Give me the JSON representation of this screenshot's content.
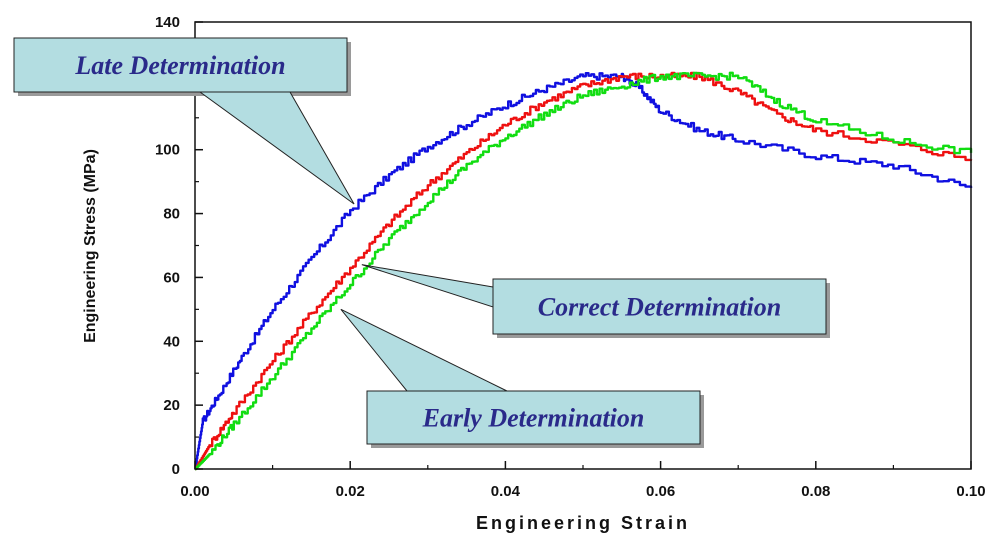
{
  "chart_data": {
    "type": "line",
    "xlabel": "Engineering Strain",
    "ylabel": "Engineering Stress (MPa)",
    "xlim": [
      0,
      0.1
    ],
    "ylim": [
      0,
      140
    ],
    "xticks": [
      "0.00",
      "0.02",
      "0.04",
      "0.06",
      "0.08",
      "0.10"
    ],
    "yticks": [
      "0",
      "20",
      "40",
      "60",
      "80",
      "100",
      "140"
    ],
    "grid": false,
    "series": [
      {
        "color": "#1010e0",
        "x": [
          0,
          0.001,
          0.003,
          0.006,
          0.01,
          0.015,
          0.02,
          0.025,
          0.03,
          0.035,
          0.04,
          0.045,
          0.05,
          0.055,
          0.057,
          0.06,
          0.065,
          0.07,
          0.08,
          0.09,
          0.1
        ],
        "y": [
          0,
          15,
          23,
          35,
          50,
          66,
          81,
          92,
          101,
          108,
          114,
          119,
          123,
          123,
          120,
          112,
          106,
          103,
          98,
          95,
          88
        ]
      },
      {
        "color": "#ee1010",
        "x": [
          0,
          0.002,
          0.005,
          0.01,
          0.015,
          0.02,
          0.025,
          0.03,
          0.035,
          0.04,
          0.045,
          0.05,
          0.055,
          0.06,
          0.065,
          0.07,
          0.075,
          0.08,
          0.09,
          0.1
        ],
        "y": [
          0,
          8,
          18,
          34,
          49,
          63,
          77,
          89,
          99,
          108,
          115,
          120,
          123,
          123,
          123,
          118,
          111,
          106,
          102,
          97
        ]
      },
      {
        "color": "#11dd11",
        "x": [
          0,
          0.002,
          0.005,
          0.01,
          0.015,
          0.02,
          0.025,
          0.03,
          0.035,
          0.04,
          0.045,
          0.05,
          0.055,
          0.06,
          0.065,
          0.07,
          0.075,
          0.08,
          0.09,
          0.1
        ],
        "y": [
          0,
          5,
          14,
          29,
          44,
          58,
          72,
          84,
          95,
          104,
          111,
          117,
          120,
          123,
          123,
          123,
          115,
          109,
          103,
          99
        ]
      }
    ],
    "annotations": [
      {
        "text": "Late Determination",
        "point": [
          0.0205,
          83
        ]
      },
      {
        "text": "Correct Determination",
        "point": [
          0.0215,
          64
        ]
      },
      {
        "text": "Early Determination",
        "point": [
          0.0188,
          50
        ]
      }
    ]
  }
}
